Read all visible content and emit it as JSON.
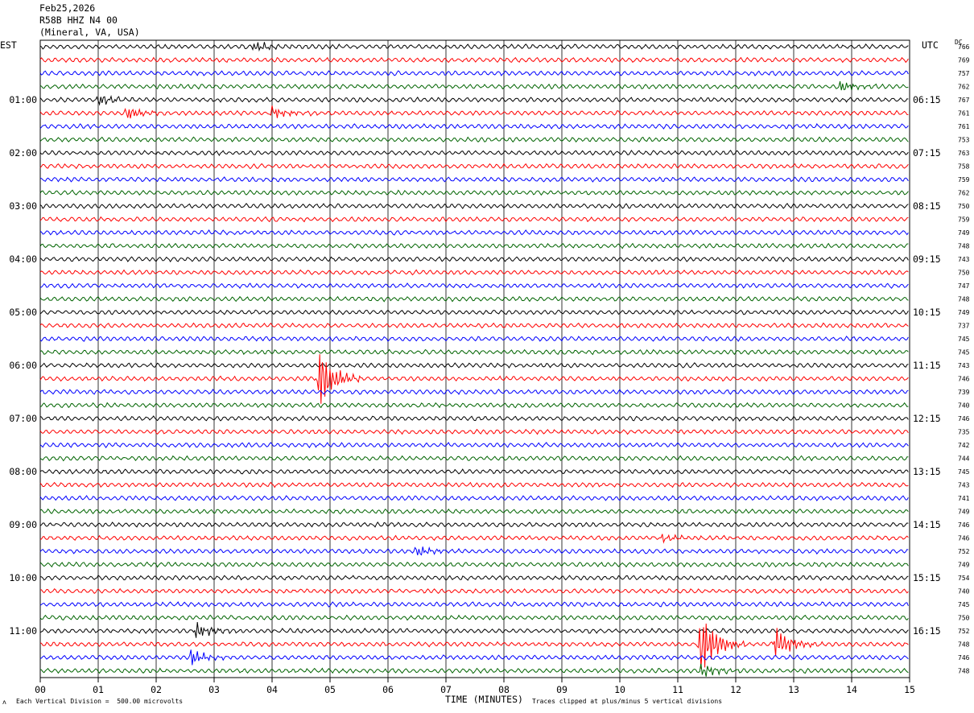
{
  "header": {
    "date": "Feb25,2026",
    "station": "R58B HHZ N4 00",
    "location": "(Mineral, VA, USA)"
  },
  "left_zone": "EST",
  "right_zone": "UTC",
  "dc_label": "DC",
  "footer": {
    "scale_note": "Each Vertical Division =  500.00 microvolts",
    "clip_note": "Traces clipped at plus/minus 5 vertical divisions",
    "x_axis_title": "TIME (MINUTES)"
  },
  "chart_data": {
    "type": "line",
    "title": "",
    "xlabel": "TIME (MINUTES)",
    "xlim": [
      0,
      15
    ],
    "x_ticks": [
      "00",
      "01",
      "02",
      "03",
      "04",
      "05",
      "06",
      "07",
      "08",
      "09",
      "10",
      "11",
      "12",
      "13",
      "14",
      "15"
    ],
    "rows_per_hour": 4,
    "minutes_per_row": 15,
    "trace_colors": [
      "#000000",
      "#ff0000",
      "#0000ff",
      "#006400"
    ],
    "left_hour_labels": [
      "01:00",
      "02:00",
      "03:00",
      "04:00",
      "05:00",
      "06:00",
      "07:00",
      "08:00",
      "09:00",
      "10:00",
      "11:00"
    ],
    "right_hour_labels": [
      "06:15",
      "07:15",
      "08:15",
      "09:15",
      "10:15",
      "11:15",
      "12:15",
      "13:15",
      "14:15",
      "15:15",
      "16:15"
    ],
    "dc_offsets": [
      766,
      769,
      757,
      762,
      767,
      761,
      761,
      753,
      763,
      758,
      759,
      762,
      750,
      759,
      749,
      748,
      743,
      750,
      747,
      748,
      749,
      737,
      745,
      745,
      743,
      746,
      739,
      740,
      746,
      735,
      742,
      744,
      745,
      743,
      741,
      749,
      746,
      746,
      752,
      749,
      754,
      740,
      745,
      750,
      752,
      748,
      746,
      748
    ],
    "events": [
      {
        "row": 0,
        "minute": 3.7,
        "amplitude": 1.5
      },
      {
        "row": 3,
        "minute": 13.8,
        "amplitude": 1.6
      },
      {
        "row": 4,
        "minute": 1.0,
        "amplitude": 1.8
      },
      {
        "row": 5,
        "minute": 1.5,
        "amplitude": 1.7
      },
      {
        "row": 5,
        "minute": 4.0,
        "amplitude": 1.9
      },
      {
        "row": 25,
        "minute": 4.8,
        "amplitude": 9.0
      },
      {
        "row": 37,
        "minute": 10.7,
        "amplitude": 1.3
      },
      {
        "row": 38,
        "minute": 6.5,
        "amplitude": 1.6
      },
      {
        "row": 44,
        "minute": 2.7,
        "amplitude": 2.4
      },
      {
        "row": 45,
        "minute": 11.4,
        "amplitude": 9.0
      },
      {
        "row": 45,
        "minute": 12.7,
        "amplitude": 5.0
      },
      {
        "row": 46,
        "minute": 2.6,
        "amplitude": 2.4
      },
      {
        "row": 47,
        "minute": 11.4,
        "amplitude": 2.0
      }
    ]
  }
}
